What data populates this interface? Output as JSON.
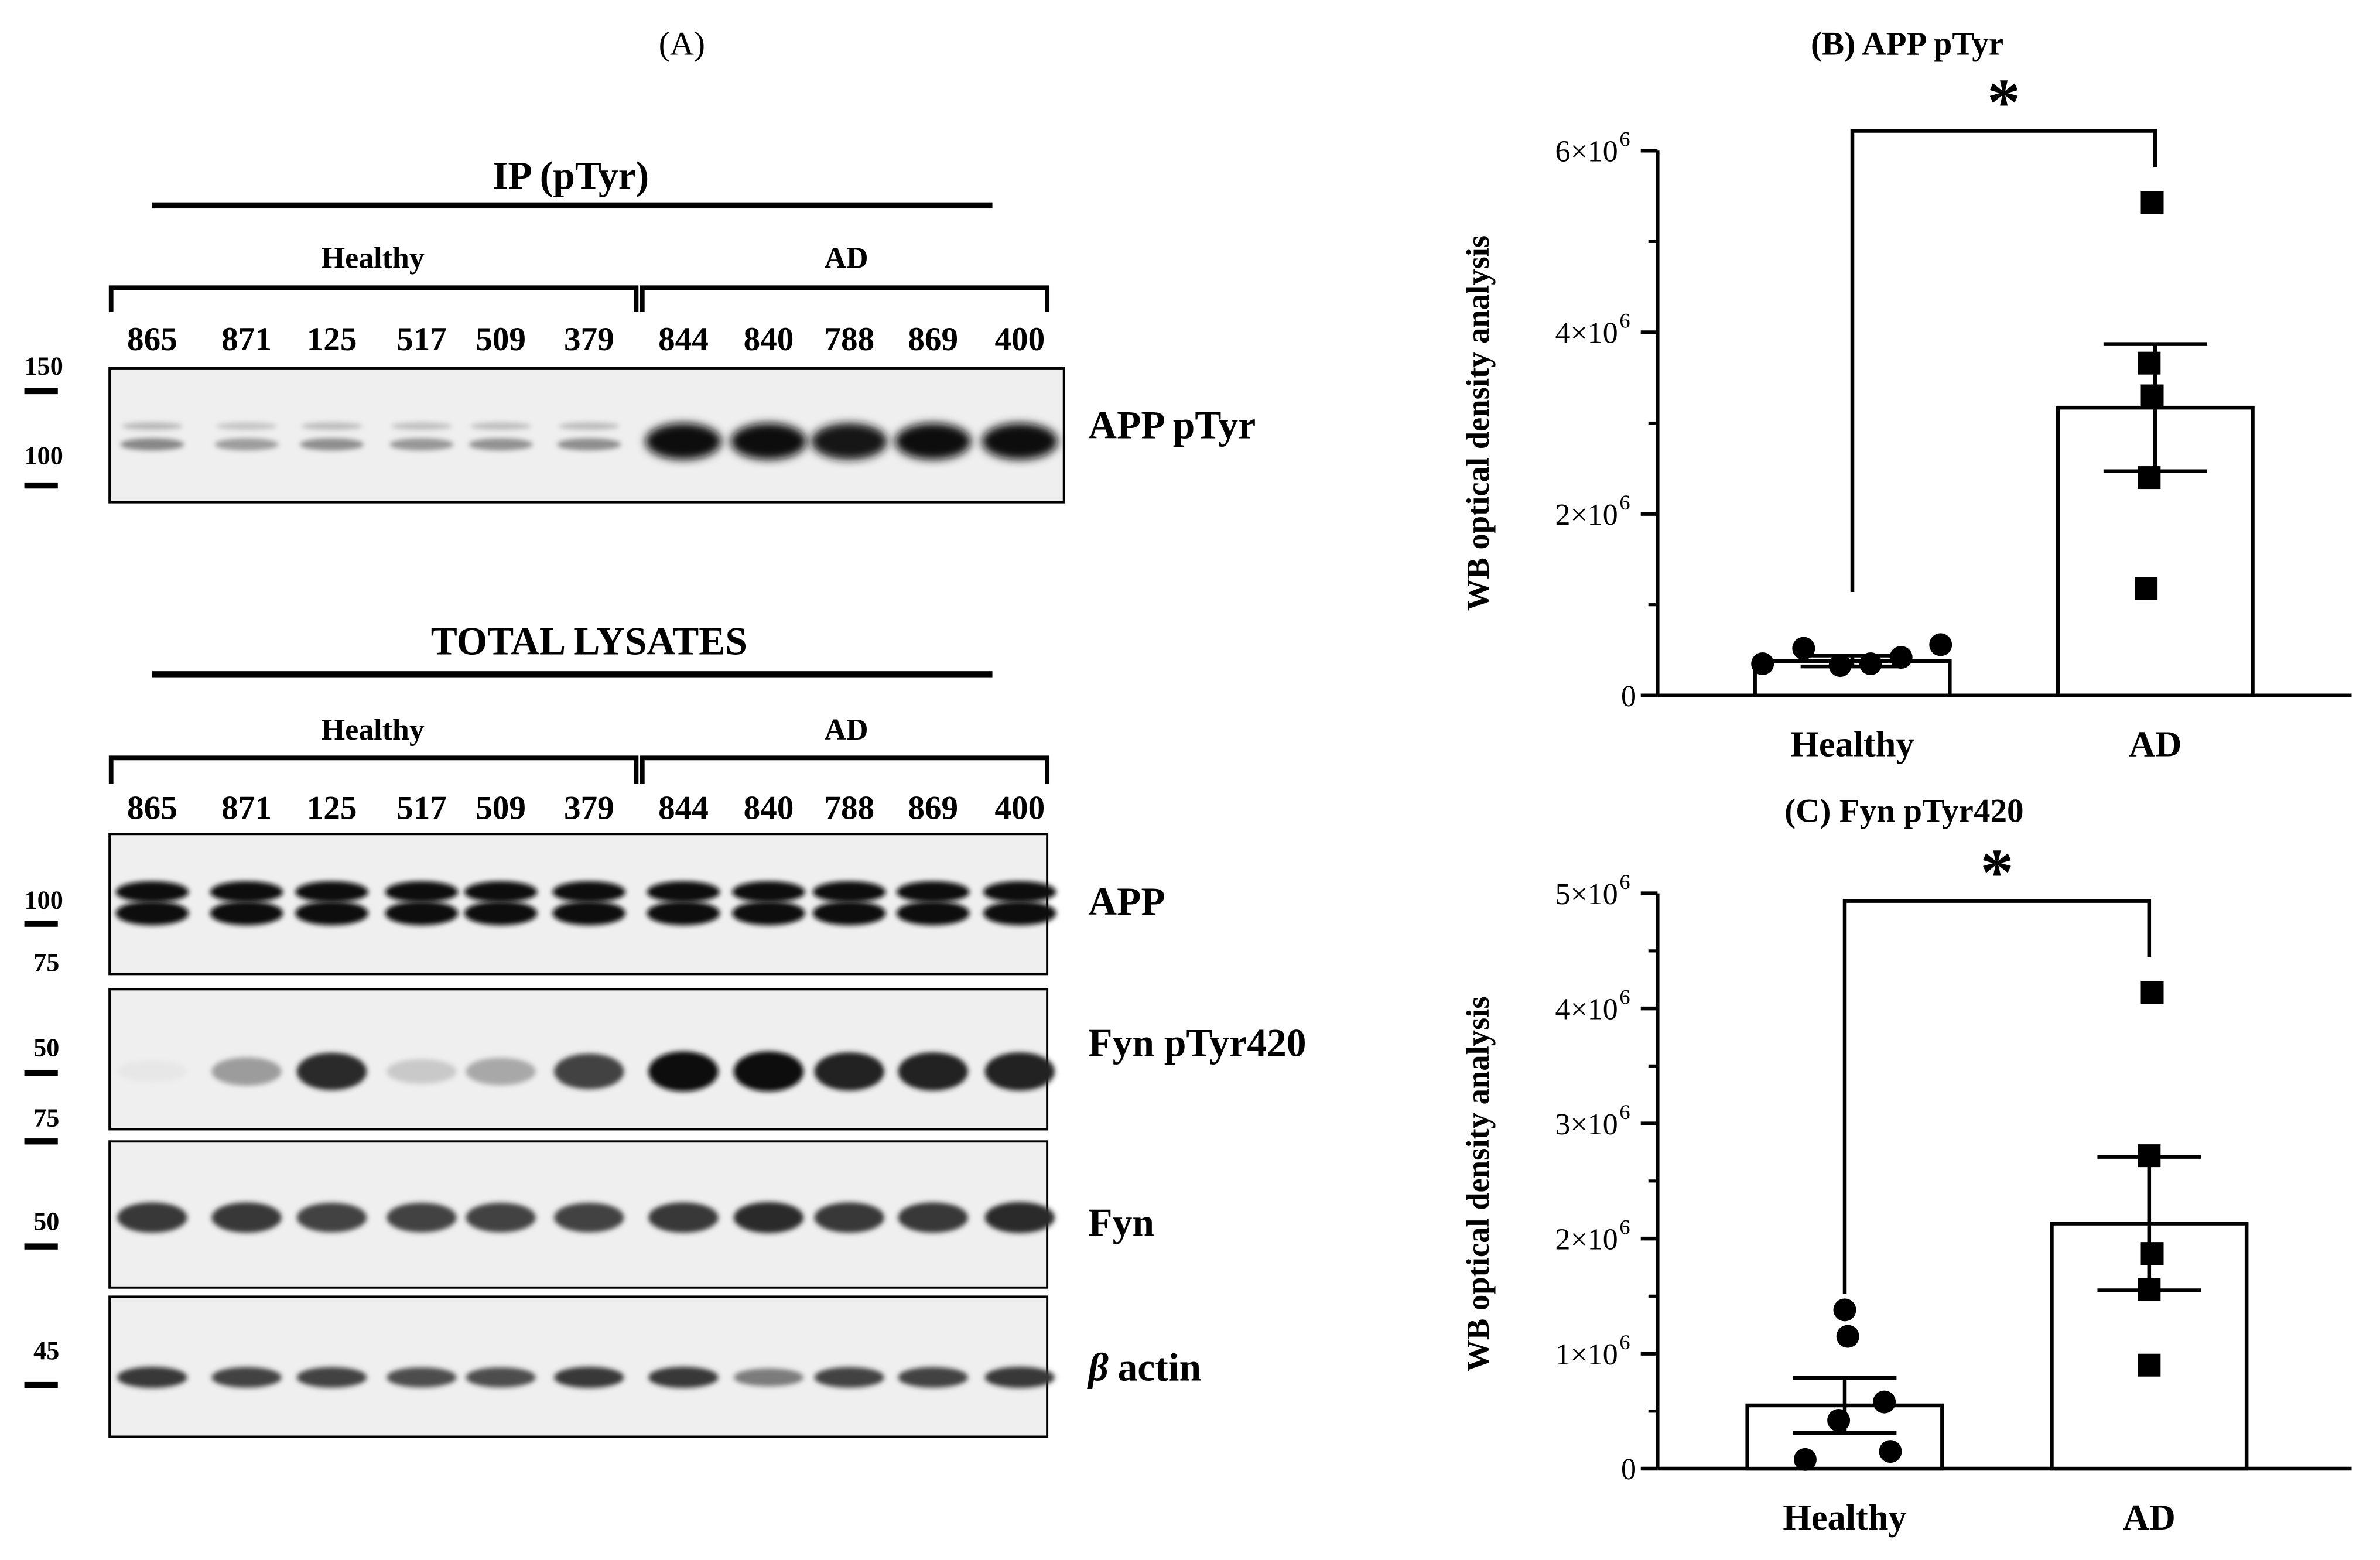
{
  "panel_a": {
    "label": "(A)",
    "ip_section": {
      "title": "IP (pTyr)",
      "group_healthy": "Healthy",
      "group_ad": "AD",
      "lanes": [
        "865",
        "871",
        "125",
        "517",
        "509",
        "379",
        "844",
        "840",
        "788",
        "869",
        "400"
      ],
      "mw_markers": [
        "150",
        "100"
      ],
      "blots": [
        {
          "label": "APP pTyr",
          "intensity": [
            0.45,
            0.35,
            0.42,
            0.38,
            0.4,
            0.42,
            1.0,
            1.0,
            0.95,
            1.0,
            1.0
          ]
        }
      ]
    },
    "lysate_section": {
      "title": "TOTAL LYSATES",
      "group_healthy": "Healthy",
      "group_ad": "AD",
      "lanes": [
        "865",
        "871",
        "125",
        "517",
        "509",
        "379",
        "844",
        "840",
        "788",
        "869",
        "400"
      ],
      "blots": [
        {
          "label": "APP",
          "markers": [
            "100",
            "75"
          ],
          "intensity": [
            1,
            1,
            1,
            1,
            1,
            1,
            1,
            1,
            1,
            1,
            1
          ]
        },
        {
          "label": "Fyn pTyr420",
          "markers": [
            "50",
            "75"
          ],
          "intensity": [
            0.02,
            0.35,
            0.85,
            0.15,
            0.3,
            0.75,
            1.0,
            1.0,
            0.9,
            0.9,
            0.9
          ]
        },
        {
          "label": "Fyn",
          "markers": [
            "50"
          ],
          "intensity": [
            0.8,
            0.8,
            0.75,
            0.75,
            0.75,
            0.75,
            0.8,
            0.85,
            0.8,
            0.8,
            0.85
          ]
        },
        {
          "label": "actin",
          "greek": "β",
          "markers": [
            "45"
          ],
          "intensity": [
            0.8,
            0.75,
            0.75,
            0.7,
            0.7,
            0.8,
            0.8,
            0.5,
            0.75,
            0.75,
            0.8
          ]
        }
      ]
    }
  },
  "chart_data": [
    {
      "type": "bar",
      "title": "(B) APP pTyr",
      "ylabel": "WB optical density analysis",
      "categories": [
        "Healthy",
        "AD"
      ],
      "values": [
        380000,
        3170000
      ],
      "sem": [
        60000,
        700000
      ],
      "points": [
        [
          350000,
          520000,
          330000,
          350000,
          420000,
          560000
        ],
        [
          5430000,
          3660000,
          3300000,
          2400000,
          1180000
        ]
      ],
      "ylim": [
        0,
        6000000
      ],
      "yticks": [
        0,
        2000000,
        4000000,
        6000000
      ],
      "ytick_labels": [
        "0",
        "2×10",
        "4×10",
        "6×10"
      ],
      "ytick_exponent": "6",
      "significance": "*"
    },
    {
      "type": "bar",
      "title": "(C) Fyn pTyr420",
      "ylabel": "WB optical density analysis",
      "categories": [
        "Healthy",
        "AD"
      ],
      "values": [
        550000,
        2130000
      ],
      "sem": [
        240000,
        580000
      ],
      "points": [
        [
          80000,
          420000,
          1380000,
          1150000,
          580000,
          150000
        ],
        [
          4140000,
          2720000,
          1870000,
          1560000,
          900000
        ]
      ],
      "ylim": [
        0,
        5000000
      ],
      "yticks": [
        0,
        1000000,
        2000000,
        3000000,
        4000000,
        5000000
      ],
      "ytick_labels": [
        "0",
        "1×10",
        "2×10",
        "3×10",
        "4×10",
        "5×10"
      ],
      "ytick_exponent": "6",
      "significance": "*"
    }
  ]
}
